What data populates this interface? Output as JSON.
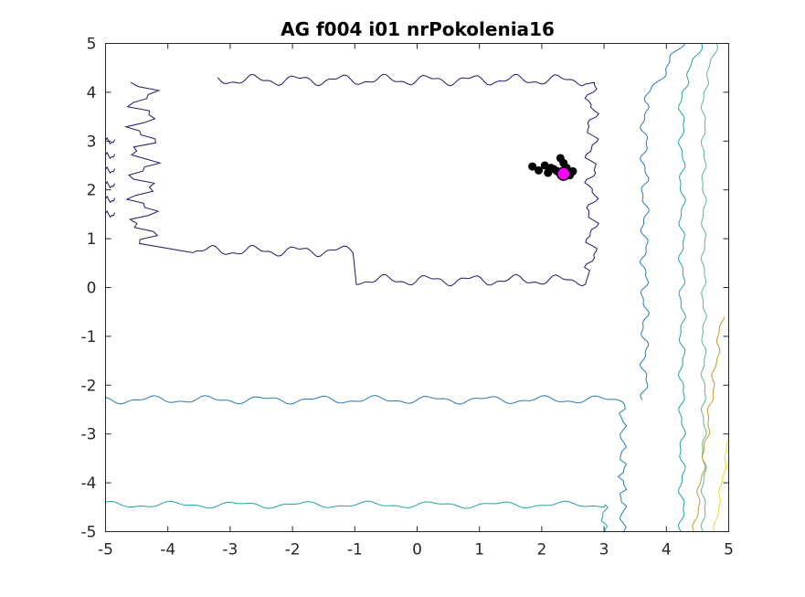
{
  "chart_data": {
    "type": "scatter",
    "title": "AG f004 i01 nrPokolenia16",
    "xlabel": "",
    "ylabel": "",
    "xlim": [
      -5,
      5
    ],
    "ylim": [
      -5,
      5
    ],
    "xticks": [
      -5,
      -4,
      -3,
      -2,
      -1,
      0,
      1,
      2,
      3,
      4,
      5
    ],
    "yticks": [
      -5,
      -4,
      -3,
      -2,
      -1,
      0,
      1,
      2,
      3,
      4,
      5
    ],
    "grid": false,
    "background": "contour",
    "contour_colors": [
      "#1a1a6e",
      "#2a7ab8",
      "#23a4a4",
      "#5fb88a",
      "#c59b2b",
      "#e8e01a"
    ],
    "series": [
      {
        "marker_color": "#000000",
        "points": [
          [
            1.85,
            2.48
          ],
          [
            1.95,
            2.4
          ],
          [
            2.05,
            2.5
          ],
          [
            2.1,
            2.35
          ],
          [
            2.15,
            2.45
          ],
          [
            2.2,
            2.42
          ],
          [
            2.25,
            2.38
          ],
          [
            2.3,
            2.65
          ],
          [
            2.35,
            2.55
          ],
          [
            2.4,
            2.45
          ],
          [
            2.45,
            2.3
          ],
          [
            2.5,
            2.38
          ]
        ]
      },
      {
        "marker_color": "#ff00ff",
        "points": [
          [
            2.35,
            2.33
          ]
        ]
      }
    ]
  }
}
